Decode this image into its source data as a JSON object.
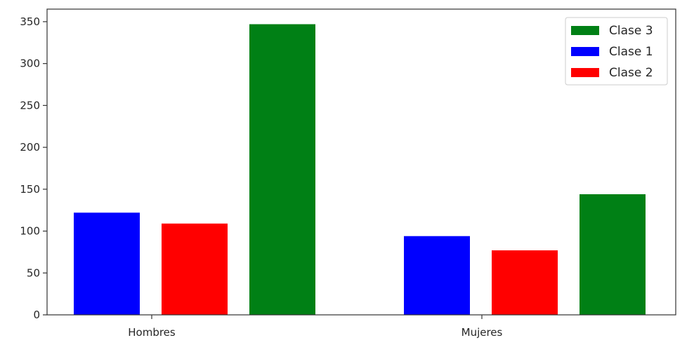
{
  "chart_data": {
    "type": "bar",
    "categories": [
      "Hombres",
      "Mujeres"
    ],
    "series": [
      {
        "name": "Clase 1",
        "color": "#0000ff",
        "values": [
          122,
          94
        ]
      },
      {
        "name": "Clase 2",
        "color": "#ff0000",
        "values": [
          109,
          77
        ]
      },
      {
        "name": "Clase 3",
        "color": "#008015",
        "values": [
          347,
          144
        ]
      }
    ],
    "legend_order": [
      "Clase 3",
      "Clase 1",
      "Clase 2"
    ],
    "legend_position": "top-right",
    "yticks": [
      0,
      50,
      100,
      150,
      200,
      250,
      300,
      350
    ],
    "ylim": [
      0,
      365
    ],
    "grid": false,
    "title": "",
    "xlabel": "",
    "ylabel": ""
  }
}
